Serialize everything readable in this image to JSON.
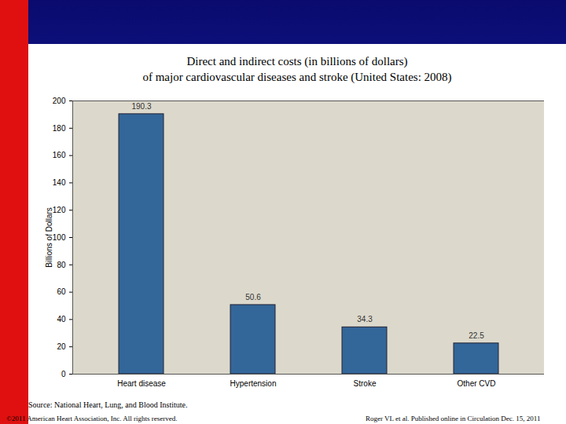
{
  "chart_data": {
    "type": "bar",
    "title": [
      "Direct and indirect costs (in billions of dollars)",
      "of major cardiovascular diseases and stroke (United States: 2008)"
    ],
    "categories": [
      "Heart disease",
      "Hypertension",
      "Stroke",
      "Other CVD"
    ],
    "values": [
      190.3,
      50.6,
      34.3,
      22.5
    ],
    "color": "#336699",
    "ylabel": "Billions of Dollars",
    "ylim": [
      0,
      200
    ],
    "yticks": [
      0,
      20,
      40,
      60,
      80,
      100,
      120,
      140,
      160,
      180,
      200
    ],
    "grid": false,
    "data_labels": true,
    "source": "Source: National Heart, Lung, and Blood Institute.",
    "annotations": [
      "©2011 American Heart Association, Inc. All rights reserved.",
      "Roger VL et al. Published online in Circulation Dec. 15, 2011"
    ]
  }
}
